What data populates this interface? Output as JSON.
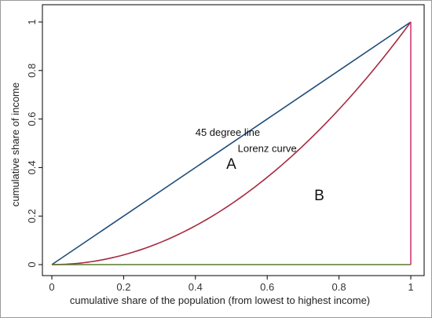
{
  "chart_data": {
    "type": "line",
    "title": "",
    "xlabel": "cumulative share of the population (from lowest to highest income)",
    "ylabel": "cumulative share of income",
    "xlim": [
      0,
      1
    ],
    "ylim": [
      0,
      1
    ],
    "x_ticks": [
      "0",
      "0.2",
      "0.4",
      "0.6",
      "0.8",
      "1"
    ],
    "y_ticks": [
      "0",
      "0.2",
      "0.4",
      "0.6",
      "0.8",
      "1"
    ],
    "grid": false,
    "legend": "none",
    "series": [
      {
        "name": "45 degree line",
        "color": "#1f4e79",
        "x": [
          0,
          1
        ],
        "y": [
          0,
          1
        ]
      },
      {
        "name": "Lorenz curve",
        "color": "#a52a40",
        "x": [
          0,
          0.1,
          0.2,
          0.3,
          0.4,
          0.5,
          0.6,
          0.7,
          0.8,
          0.9,
          1
        ],
        "y": [
          0,
          0.01,
          0.04,
          0.09,
          0.16,
          0.25,
          0.36,
          0.49,
          0.64,
          0.81,
          1
        ]
      },
      {
        "color": "#5a7a2a",
        "x": [
          0,
          1
        ],
        "y": [
          0,
          0
        ]
      },
      {
        "color": "#d4387a",
        "x": [
          1,
          1
        ],
        "y": [
          0,
          1
        ]
      }
    ],
    "annotations": [
      {
        "text": "45 degree line",
        "x": 0.49,
        "y": 0.53,
        "size": "small"
      },
      {
        "text": "Lorenz curve",
        "x": 0.6,
        "y": 0.465,
        "size": "small"
      },
      {
        "text": "A",
        "x": 0.5,
        "y": 0.395,
        "size": "large"
      },
      {
        "text": "B",
        "x": 0.745,
        "y": 0.265,
        "size": "large"
      }
    ]
  }
}
